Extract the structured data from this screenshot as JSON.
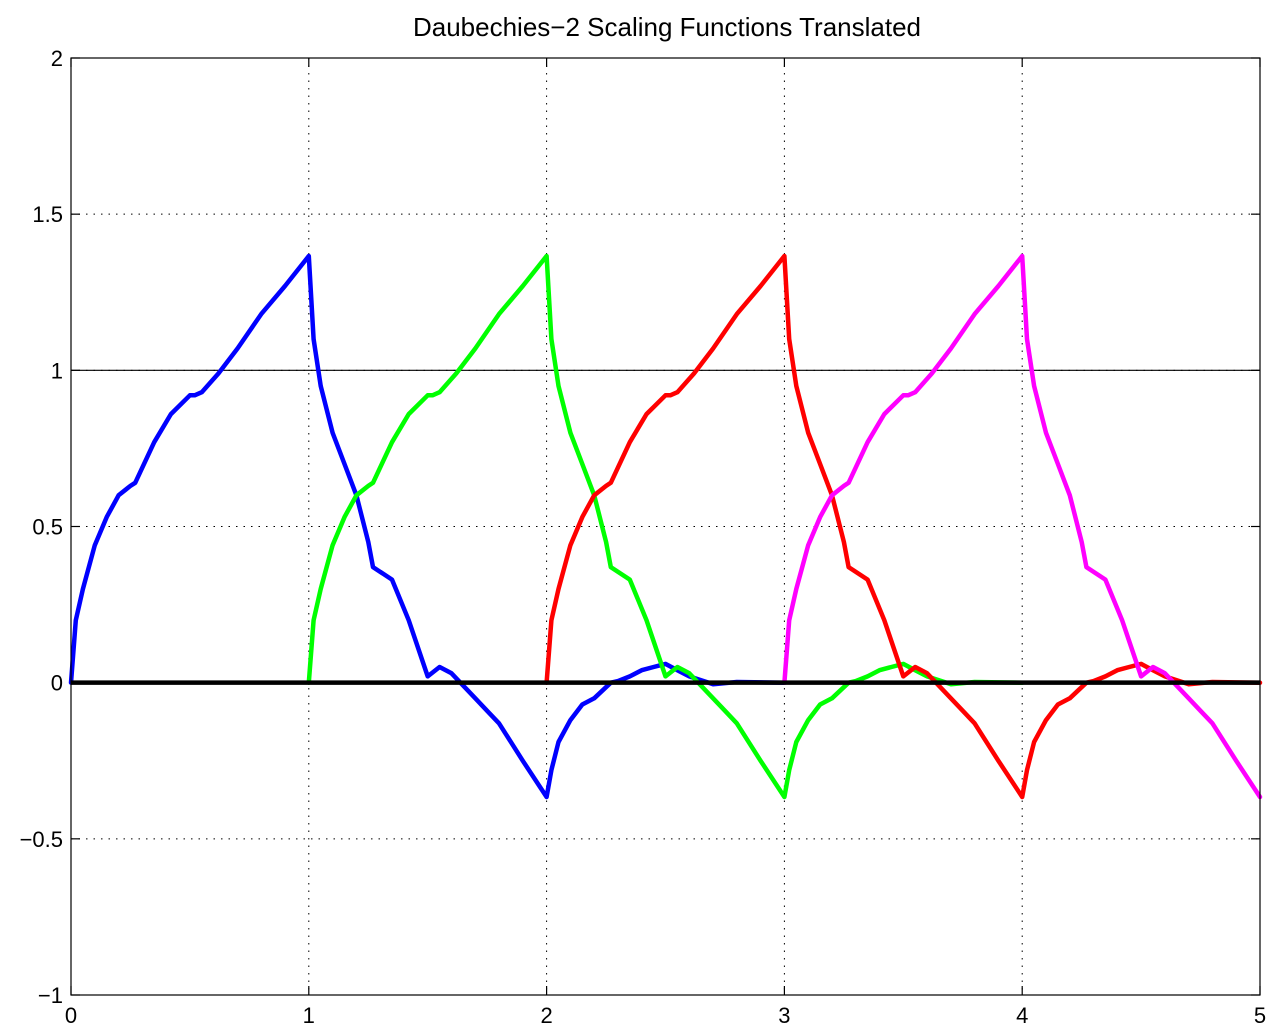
{
  "chart_data": {
    "type": "line",
    "title": "Daubechies−2 Scaling Functions Translated",
    "xlabel": "",
    "ylabel": "",
    "xlim": [
      0,
      5
    ],
    "ylim": [
      -1,
      2
    ],
    "x_ticks": [
      "0",
      "1",
      "2",
      "3",
      "4",
      "5"
    ],
    "y_ticks": [
      "−1",
      "−0.5",
      "0",
      "0.5",
      "1",
      "1.5",
      "2"
    ],
    "grid": true,
    "reference_lines": [
      {
        "y": 0,
        "color": "#000000"
      },
      {
        "y": 1,
        "color": "#000000"
      }
    ],
    "series": [
      {
        "color": "#0000ff",
        "x": [
          0,
          0.02,
          0.05,
          0.1,
          0.15,
          0.2,
          0.25,
          0.27,
          0.35,
          0.42,
          0.5,
          0.52,
          0.55,
          0.62,
          0.7,
          0.8,
          0.9,
          1.0,
          1.02,
          1.05,
          1.1,
          1.15,
          1.2,
          1.25,
          1.27,
          1.35,
          1.42,
          1.5,
          1.55,
          1.6,
          1.7,
          1.75,
          1.8,
          1.9,
          2.0,
          2.02,
          2.05,
          2.1,
          2.15,
          2.2,
          2.27,
          2.3,
          2.35,
          2.4,
          2.45,
          2.5,
          2.55,
          2.6,
          2.7,
          2.8,
          3.0
        ],
        "y": [
          0,
          0.2,
          0.3,
          0.44,
          0.53,
          0.6,
          0.63,
          0.64,
          0.77,
          0.86,
          0.92,
          0.92,
          0.93,
          0.99,
          1.07,
          1.18,
          1.27,
          1.366,
          1.1,
          0.95,
          0.8,
          0.7,
          0.6,
          0.45,
          0.37,
          0.33,
          0.2,
          0.02,
          0.05,
          0.03,
          -0.05,
          -0.09,
          -0.13,
          -0.25,
          -0.366,
          -0.28,
          -0.19,
          -0.12,
          -0.07,
          -0.05,
          0.0,
          0.005,
          0.02,
          0.04,
          0.05,
          0.06,
          0.04,
          0.02,
          -0.005,
          0.002,
          0
        ]
      },
      {
        "color": "#00ff00",
        "x": [
          1,
          1.02,
          1.05,
          1.1,
          1.15,
          1.2,
          1.25,
          1.27,
          1.35,
          1.42,
          1.5,
          1.52,
          1.55,
          1.62,
          1.7,
          1.8,
          1.9,
          2.0,
          2.02,
          2.05,
          2.1,
          2.15,
          2.2,
          2.25,
          2.27,
          2.35,
          2.42,
          2.5,
          2.55,
          2.6,
          2.7,
          2.75,
          2.8,
          2.9,
          3.0,
          3.02,
          3.05,
          3.1,
          3.15,
          3.2,
          3.27,
          3.3,
          3.35,
          3.4,
          3.45,
          3.5,
          3.55,
          3.6,
          3.7,
          3.8,
          4.0
        ],
        "y": [
          0,
          0.2,
          0.3,
          0.44,
          0.53,
          0.6,
          0.63,
          0.64,
          0.77,
          0.86,
          0.92,
          0.92,
          0.93,
          0.99,
          1.07,
          1.18,
          1.27,
          1.366,
          1.1,
          0.95,
          0.8,
          0.7,
          0.6,
          0.45,
          0.37,
          0.33,
          0.2,
          0.02,
          0.05,
          0.03,
          -0.05,
          -0.09,
          -0.13,
          -0.25,
          -0.366,
          -0.28,
          -0.19,
          -0.12,
          -0.07,
          -0.05,
          0.0,
          0.005,
          0.02,
          0.04,
          0.05,
          0.06,
          0.04,
          0.02,
          -0.005,
          0.002,
          0
        ]
      },
      {
        "color": "#ff0000",
        "x": [
          2,
          2.02,
          2.05,
          2.1,
          2.15,
          2.2,
          2.25,
          2.27,
          2.35,
          2.42,
          2.5,
          2.52,
          2.55,
          2.62,
          2.7,
          2.8,
          2.9,
          3.0,
          3.02,
          3.05,
          3.1,
          3.15,
          3.2,
          3.25,
          3.27,
          3.35,
          3.42,
          3.5,
          3.55,
          3.6,
          3.7,
          3.75,
          3.8,
          3.9,
          4.0,
          4.02,
          4.05,
          4.1,
          4.15,
          4.2,
          4.27,
          4.3,
          4.35,
          4.4,
          4.45,
          4.5,
          4.55,
          4.6,
          4.7,
          4.8,
          5.0
        ],
        "y": [
          0,
          0.2,
          0.3,
          0.44,
          0.53,
          0.6,
          0.63,
          0.64,
          0.77,
          0.86,
          0.92,
          0.92,
          0.93,
          0.99,
          1.07,
          1.18,
          1.27,
          1.366,
          1.1,
          0.95,
          0.8,
          0.7,
          0.6,
          0.45,
          0.37,
          0.33,
          0.2,
          0.02,
          0.05,
          0.03,
          -0.05,
          -0.09,
          -0.13,
          -0.25,
          -0.366,
          -0.28,
          -0.19,
          -0.12,
          -0.07,
          -0.05,
          0.0,
          0.005,
          0.02,
          0.04,
          0.05,
          0.06,
          0.04,
          0.02,
          -0.005,
          0.002,
          0
        ]
      },
      {
        "color": "#ff00ff",
        "x": [
          3,
          3.02,
          3.05,
          3.1,
          3.15,
          3.2,
          3.25,
          3.27,
          3.35,
          3.42,
          3.5,
          3.52,
          3.55,
          3.62,
          3.7,
          3.8,
          3.9,
          4.0,
          4.02,
          4.05,
          4.1,
          4.15,
          4.2,
          4.25,
          4.27,
          4.35,
          4.42,
          4.5,
          4.55,
          4.6,
          4.7,
          4.75,
          4.8,
          4.9,
          5.0
        ],
        "y": [
          0,
          0.2,
          0.3,
          0.44,
          0.53,
          0.6,
          0.63,
          0.64,
          0.77,
          0.86,
          0.92,
          0.92,
          0.93,
          0.99,
          1.07,
          1.18,
          1.27,
          1.366,
          1.1,
          0.95,
          0.8,
          0.7,
          0.6,
          0.45,
          0.37,
          0.33,
          0.2,
          0.02,
          0.05,
          0.03,
          -0.05,
          -0.09,
          -0.13,
          -0.25,
          -0.366
        ]
      }
    ]
  }
}
